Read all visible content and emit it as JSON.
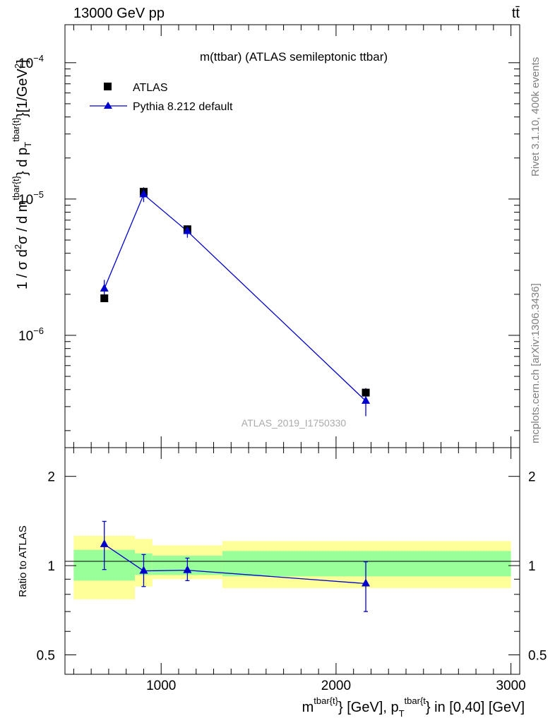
{
  "header": {
    "left": "13000 GeV pp",
    "right": "tt̄"
  },
  "side_text": {
    "top": "Rivet 3.1.10,  400k events",
    "bottom": "mcplots.cern.ch [arXiv:1306.3436]"
  },
  "colors": {
    "mc": "#0000cc",
    "data": "#000000",
    "band_inner": "#99ff99",
    "band_outer": "#ffff99"
  },
  "chart_data": [
    {
      "type": "scatter",
      "panel": "main",
      "title": "m(ttbar) (ATLAS semileptonic ttbar)",
      "watermark": "ATLAS_2019_I1750330",
      "ylabel": {
        "prefix": "1 / σ d",
        "sup2": "2",
        "mid": "σ / d m",
        "sup_m": "tbar{t}",
        "mid2": "} d p",
        "sub_T": "T",
        "sup_p": "tbar{t}",
        "unit": "}[1/GeV",
        "unit_sup": "2",
        "close": "]"
      },
      "yscale": "log",
      "ylim": [
        1.5e-07,
        0.00019
      ],
      "xlim": [
        450,
        3050
      ],
      "x_ticks": [
        1000,
        2000,
        3000
      ],
      "y_ticks": [
        {
          "value": 1e-06,
          "base": "10",
          "exp": "−6"
        },
        {
          "value": 1e-05,
          "base": "10",
          "exp": "−5"
        },
        {
          "value": 0.0001,
          "base": "10",
          "exp": "−4"
        }
      ],
      "legend_position": "top-left",
      "series": [
        {
          "name": "ATLAS",
          "marker": "square",
          "x": [
            675,
            900,
            1150,
            2170
          ],
          "y": [
            1.87e-06,
            1.13e-05,
            6e-06,
            3.8e-07
          ]
        },
        {
          "name": "Pythia 8.212 default",
          "marker": "triangle",
          "x": [
            675,
            900,
            1150,
            2170
          ],
          "y": [
            2.2e-06,
            1.08e-05,
            5.8e-06,
            3.3e-07
          ],
          "y_err_low": [
            1.85e-06,
            9.5e-06,
            5.2e-06,
            2.55e-07
          ],
          "y_err_high": [
            2.55e-06,
            1.22e-05,
            6.4e-06,
            4.1e-07
          ]
        }
      ]
    },
    {
      "type": "line",
      "panel": "ratio",
      "ylabel": "Ratio to ATLAS",
      "xlabel": {
        "m": "m",
        "sup_m": "tbar{t}",
        "mid": "} [GeV], p",
        "sub_T": "T",
        "sup_p": "tbar{t",
        "tail": "} in [0,40] [GeV]"
      },
      "yscale": "log",
      "ylim": [
        0.43,
        2.5
      ],
      "xlim": [
        450,
        3050
      ],
      "x_ticks": [
        1000,
        2000,
        3000
      ],
      "y_ticks": [
        {
          "value": 0.5,
          "label": "0.5"
        },
        {
          "value": 1,
          "label": "1"
        },
        {
          "value": 2,
          "label": "2"
        }
      ],
      "bands": [
        {
          "x": [
            500,
            850
          ],
          "inner": [
            0.89,
            1.13
          ],
          "outer": [
            0.77,
            1.26
          ]
        },
        {
          "x": [
            850,
            950
          ],
          "inner": [
            0.93,
            1.1
          ],
          "outer": [
            0.85,
            1.23
          ]
        },
        {
          "x": [
            950,
            1350
          ],
          "inner": [
            0.93,
            1.08
          ],
          "outer": [
            0.9,
            1.17
          ]
        },
        {
          "x": [
            1350,
            3000
          ],
          "inner": [
            0.92,
            1.12
          ],
          "outer": [
            0.84,
            1.21
          ]
        }
      ],
      "series": [
        {
          "name": "Pythia 8.212 default",
          "x": [
            675,
            900,
            1150,
            2170
          ],
          "y": [
            1.18,
            0.96,
            0.965,
            0.87
          ],
          "y_err_low": [
            0.97,
            0.85,
            0.89,
            0.7
          ],
          "y_err_high": [
            1.41,
            1.09,
            1.06,
            1.03
          ]
        }
      ]
    }
  ]
}
